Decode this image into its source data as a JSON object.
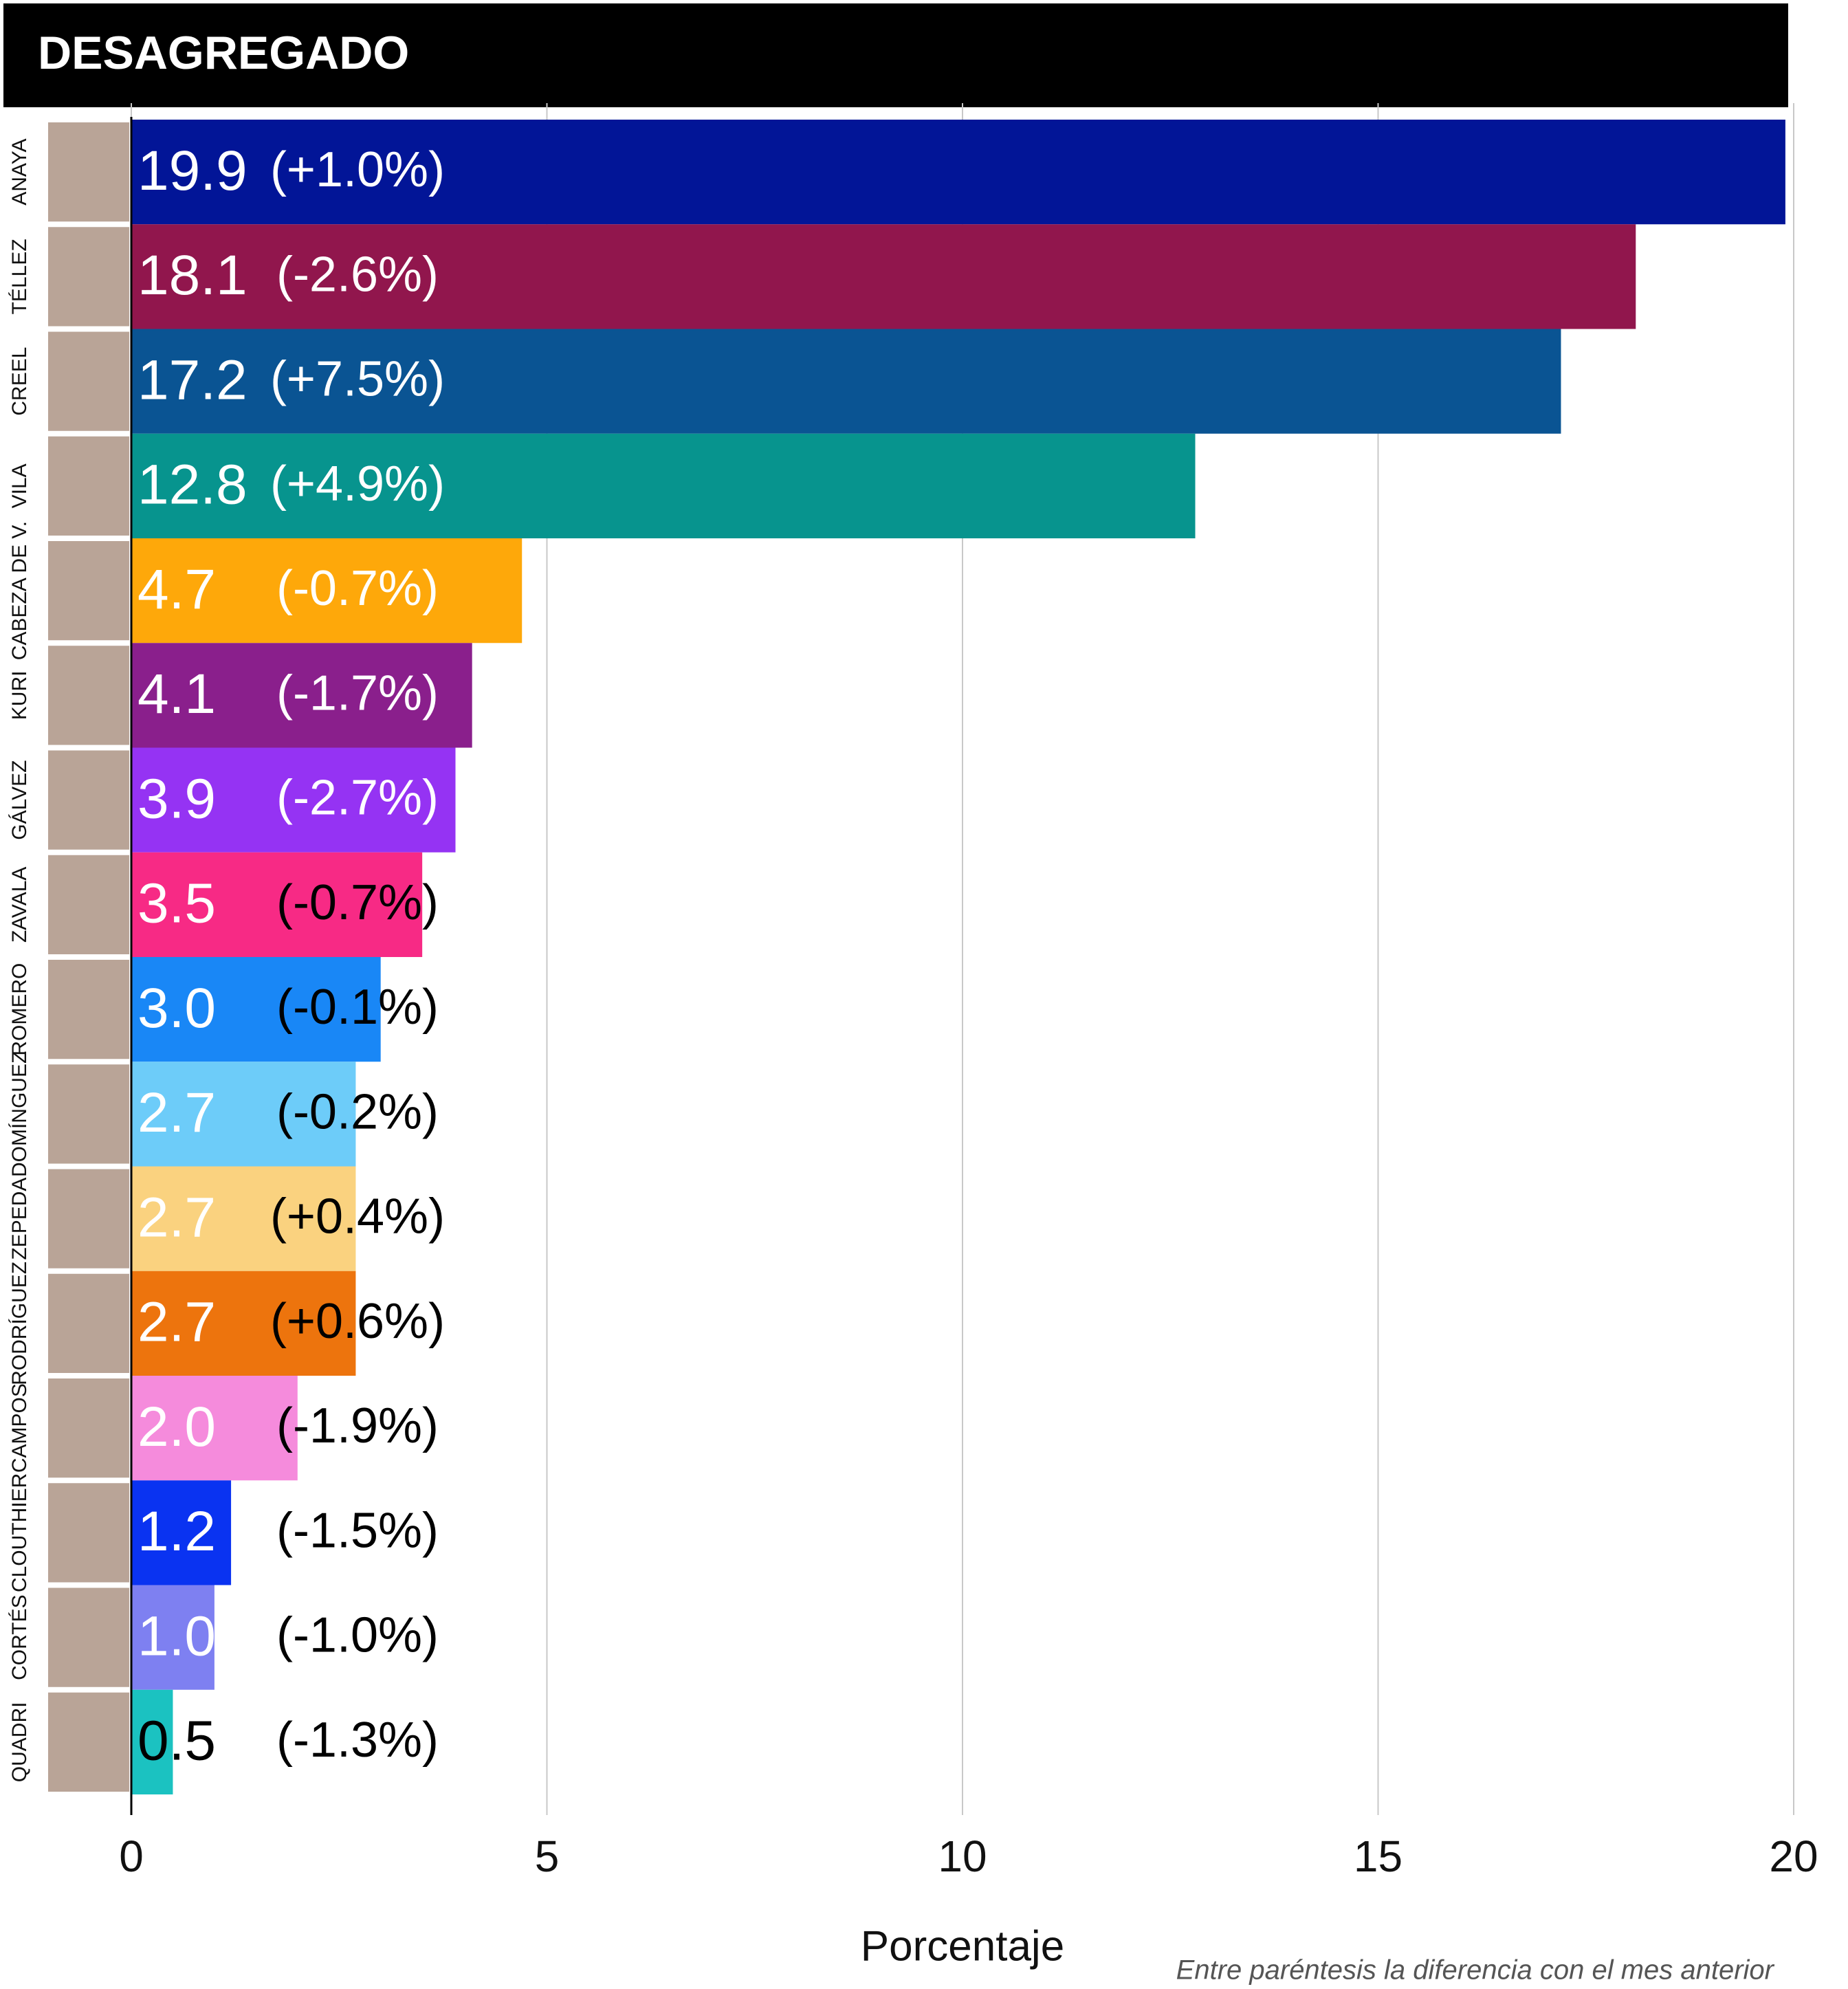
{
  "chart_data": {
    "type": "barh",
    "title": "DESAGREGADO",
    "categories": [
      "ANAYA",
      "TÉLLEZ",
      "CREEL",
      "VILA",
      "CABEZA DE V.",
      "KURI",
      "GÁLVEZ",
      "ZAVALA",
      "ROMERO",
      "DOMÍNGUEZ",
      "ZEPEDA",
      "RODRÍGUEZ",
      "CAMPOS",
      "CLOUTHIER",
      "CORTÉS",
      "QUADRI"
    ],
    "values": [
      19.9,
      18.1,
      17.2,
      12.8,
      4.7,
      4.1,
      3.9,
      3.5,
      3.0,
      2.7,
      2.7,
      2.7,
      2.0,
      1.2,
      1.0,
      0.5
    ],
    "value_labels": [
      "19.9",
      "18.1",
      "17.2",
      "12.8",
      "4.7",
      "4.1",
      "3.9",
      "3.5",
      "3.0",
      "2.7",
      "2.7",
      "2.7",
      "2.0",
      "1.2",
      "1.0",
      "0.5"
    ],
    "changes": [
      "(+1.0%)",
      "(-2.6%)",
      "(+7.5%)",
      "(+4.9%)",
      "(-0.7%)",
      "(-1.7%)",
      "(-2.7%)",
      "(-0.7%)",
      "(-0.1%)",
      "(-0.2%)",
      "(+0.4%)",
      "(+0.6%)",
      "(-1.9%)",
      "(-1.5%)",
      "(-1.0%)",
      "(-1.3%)"
    ],
    "colors": [
      "#021597",
      "#91164d",
      "#0a5493",
      "#07948e",
      "#fea80a",
      "#8a1f8c",
      "#9533f3",
      "#f72a85",
      "#1987f6",
      "#6dccf9",
      "#fad27f",
      "#ed740d",
      "#f58bdc",
      "#0a33f1",
      "#7e80f1",
      "#1bc2c1"
    ],
    "xlim": [
      0,
      20
    ],
    "xticks": [
      0,
      5,
      10,
      15,
      20
    ],
    "grid": true,
    "xlabel": "Porcentaje",
    "note": "Entre paréntesis la diferencia con el mes anterior"
  }
}
